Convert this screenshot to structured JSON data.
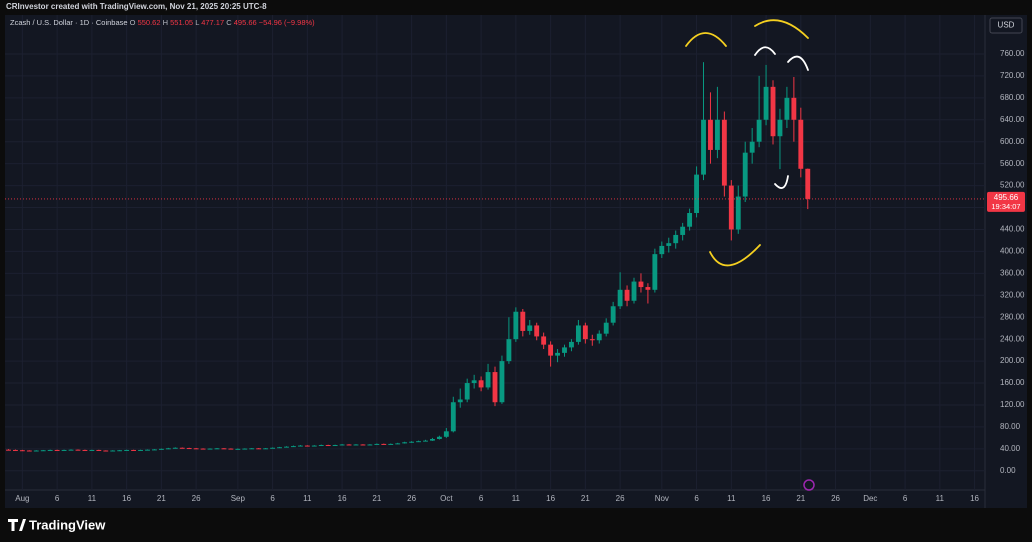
{
  "header": {
    "credit": "CRInvestor created with TradingView.com, Nov 21, 2025 20:25 UTC-8",
    "currency": "USD"
  },
  "chart_data": {
    "type": "candlestick",
    "title": "Zcash / U.S. Dollar · 1D · Coinbase",
    "ohlc_labels": [
      "O",
      "H",
      "L",
      "C"
    ],
    "change": "−54.96 (−9.98%)",
    "countdown": "19:34:07",
    "up_color": "#089981",
    "down_color": "#f23645",
    "grid": true,
    "ylim": [
      -35,
      831
    ],
    "yticks": [
      {
        "value": 0,
        "label": "0.00"
      },
      {
        "value": 40,
        "label": "40.00"
      },
      {
        "value": 80,
        "label": "80.00"
      },
      {
        "value": 120,
        "label": "120.00"
      },
      {
        "value": 160,
        "label": "160.00"
      },
      {
        "value": 200,
        "label": "200.00"
      },
      {
        "value": 240,
        "label": "240.00"
      },
      {
        "value": 280,
        "label": "280.00"
      },
      {
        "value": 320,
        "label": "320.00"
      },
      {
        "value": 360,
        "label": "360.00"
      },
      {
        "value": 400,
        "label": "400.00"
      },
      {
        "value": 440,
        "label": "440.00"
      },
      {
        "value": 480,
        "label": "480.00"
      },
      {
        "value": 520,
        "label": "520.00"
      },
      {
        "value": 560,
        "label": "560.00"
      },
      {
        "value": 600,
        "label": "600.00"
      },
      {
        "value": 640,
        "label": "640.00"
      },
      {
        "value": 680,
        "label": "680.00"
      },
      {
        "value": 720,
        "label": "720.00"
      },
      {
        "value": 760,
        "label": "760.00"
      }
    ],
    "xticks": [
      {
        "value": "Aug 1",
        "label": "Aug"
      },
      {
        "value": "Aug 6",
        "label": "6"
      },
      {
        "value": "Aug 11",
        "label": "11"
      },
      {
        "value": "Aug 16",
        "label": "16"
      },
      {
        "value": "Aug 21",
        "label": "21"
      },
      {
        "value": "Aug 26",
        "label": "26"
      },
      {
        "value": "Sep 1",
        "label": "Sep"
      },
      {
        "value": "Sep 6",
        "label": "6"
      },
      {
        "value": "Sep 11",
        "label": "11"
      },
      {
        "value": "Sep 16",
        "label": "16"
      },
      {
        "value": "Sep 21",
        "label": "21"
      },
      {
        "value": "Sep 26",
        "label": "26"
      },
      {
        "value": "Oct 1",
        "label": "Oct"
      },
      {
        "value": "Oct 6",
        "label": "6"
      },
      {
        "value": "Oct 11",
        "label": "11"
      },
      {
        "value": "Oct 16",
        "label": "16"
      },
      {
        "value": "Oct 21",
        "label": "21"
      },
      {
        "value": "Oct 26",
        "label": "26"
      },
      {
        "value": "Nov 1",
        "label": "Nov"
      },
      {
        "value": "Nov 6",
        "label": "6"
      },
      {
        "value": "Nov 11",
        "label": "11"
      },
      {
        "value": "Nov 16",
        "label": "16"
      },
      {
        "value": "Nov 21",
        "label": "21"
      },
      {
        "value": "Nov 26",
        "label": "26"
      },
      {
        "value": "Dec 1",
        "label": "Dec"
      },
      {
        "value": "Dec 6",
        "label": "6"
      },
      {
        "value": "Dec 11",
        "label": "11"
      },
      {
        "value": "Dec 16",
        "label": "16"
      }
    ],
    "categories": [
      "Jul 30",
      "Jul 31",
      "Aug 1",
      "Aug 2",
      "Aug 3",
      "Aug 4",
      "Aug 5",
      "Aug 6",
      "Aug 7",
      "Aug 8",
      "Aug 9",
      "Aug 10",
      "Aug 11",
      "Aug 12",
      "Aug 13",
      "Aug 14",
      "Aug 15",
      "Aug 16",
      "Aug 17",
      "Aug 18",
      "Aug 19",
      "Aug 20",
      "Aug 21",
      "Aug 22",
      "Aug 23",
      "Aug 24",
      "Aug 25",
      "Aug 26",
      "Aug 27",
      "Aug 28",
      "Aug 29",
      "Aug 30",
      "Aug 31",
      "Sep 1",
      "Sep 2",
      "Sep 3",
      "Sep 4",
      "Sep 5",
      "Sep 6",
      "Sep 7",
      "Sep 8",
      "Sep 9",
      "Sep 10",
      "Sep 11",
      "Sep 12",
      "Sep 13",
      "Sep 14",
      "Sep 15",
      "Sep 16",
      "Sep 17",
      "Sep 18",
      "Sep 19",
      "Sep 20",
      "Sep 21",
      "Sep 22",
      "Sep 23",
      "Sep 24",
      "Sep 25",
      "Sep 26",
      "Sep 27",
      "Sep 28",
      "Sep 29",
      "Sep 30",
      "Oct 1",
      "Oct 2",
      "Oct 3",
      "Oct 4",
      "Oct 5",
      "Oct 6",
      "Oct 7",
      "Oct 8",
      "Oct 9",
      "Oct 10",
      "Oct 11",
      "Oct 12",
      "Oct 13",
      "Oct 14",
      "Oct 15",
      "Oct 16",
      "Oct 17",
      "Oct 18",
      "Oct 19",
      "Oct 20",
      "Oct 21",
      "Oct 22",
      "Oct 23",
      "Oct 24",
      "Oct 25",
      "Oct 26",
      "Oct 27",
      "Oct 28",
      "Oct 29",
      "Oct 30",
      "Oct 31",
      "Nov 1",
      "Nov 2",
      "Nov 3",
      "Nov 4",
      "Nov 5",
      "Nov 6",
      "Nov 7",
      "Nov 8",
      "Nov 9",
      "Nov 10",
      "Nov 11",
      "Nov 12",
      "Nov 13",
      "Nov 14",
      "Nov 15",
      "Nov 16",
      "Nov 17",
      "Nov 18",
      "Nov 19",
      "Nov 20",
      "Nov 21",
      "Nov 22",
      "Nov 23",
      "Nov 24",
      "Nov 25",
      "Nov 26",
      "Nov 27",
      "Nov 28",
      "Nov 29",
      "Nov 30",
      "Dec 1",
      "Dec 2",
      "Dec 3",
      "Dec 4",
      "Dec 5",
      "Dec 6",
      "Dec 7",
      "Dec 8",
      "Dec 9",
      "Dec 10",
      "Dec 11",
      "Dec 12",
      "Dec 13",
      "Dec 14",
      "Dec 15",
      "Dec 16",
      "Dec 17"
    ],
    "open": [
      38.5,
      38,
      37.5,
      37,
      36.5,
      37,
      37.5,
      38,
      37.5,
      38,
      38.5,
      38,
      37.5,
      38,
      37,
      36.5,
      37,
      37.5,
      38,
      37.5,
      38,
      38.5,
      39,
      40,
      41,
      42,
      41.5,
      41,
      40.5,
      40,
      40.5,
      41,
      40.5,
      40,
      40,
      40.5,
      41,
      40.5,
      41,
      42,
      43,
      44,
      45,
      46,
      45.5,
      46,
      47,
      46.5,
      47,
      48,
      47.5,
      48,
      47,
      48,
      49,
      48.5,
      49,
      50,
      52,
      53,
      54,
      55,
      58,
      62,
      72,
      125,
      130,
      160,
      165,
      152,
      180,
      125,
      200,
      240,
      290,
      255,
      265,
      245,
      230,
      210,
      215,
      225,
      235,
      265,
      240,
      238,
      250,
      270,
      300,
      330,
      310,
      345,
      335,
      330,
      395,
      410,
      415,
      430,
      445,
      470,
      540,
      640,
      585,
      640,
      520,
      440,
      500,
      580,
      600,
      640,
      700,
      610,
      640,
      680,
      640,
      550.62,
      null,
      null,
      null,
      null,
      null,
      null,
      null,
      null,
      null,
      null,
      null,
      null,
      null,
      null,
      null,
      null,
      null,
      null,
      null,
      null,
      null,
      null,
      null,
      null,
      null
    ],
    "high": [
      39.5,
      38.8,
      38.2,
      37.5,
      37.6,
      38,
      38.6,
      38.5,
      38.6,
      39.2,
      39,
      38.6,
      38.5,
      38.4,
      37.4,
      37.6,
      38,
      38.5,
      38.4,
      38.5,
      39,
      39.6,
      40.6,
      41.8,
      42.8,
      42.6,
      42,
      41.6,
      41,
      41,
      41.6,
      41.4,
      41,
      40.8,
      41,
      41.6,
      41.5,
      41.6,
      42.6,
      43.6,
      44.8,
      46,
      47,
      46.6,
      46.8,
      47.8,
      47.5,
      47.6,
      48.8,
      48.6,
      48.6,
      48.5,
      48.6,
      49.8,
      49.6,
      49.8,
      51,
      53,
      54,
      55,
      56.5,
      60,
      64,
      78,
      135,
      150,
      168,
      175,
      172,
      195,
      190,
      210,
      280,
      298,
      295,
      275,
      270,
      252,
      236,
      222,
      230,
      240,
      275,
      270,
      248,
      256,
      278,
      308,
      362,
      338,
      352,
      360,
      342,
      405,
      418,
      425,
      438,
      452,
      478,
      555,
      745,
      690,
      700,
      655,
      530,
      520,
      600,
      625,
      720,
      740,
      712,
      660,
      700,
      718,
      662,
      551.05,
      null,
      null,
      null,
      null,
      null,
      null,
      null,
      null,
      null,
      null,
      null,
      null,
      null,
      null,
      null,
      null,
      null,
      null,
      null,
      null,
      null,
      null,
      null,
      null,
      null
    ],
    "low": [
      37.5,
      37,
      36.5,
      36,
      36,
      36.6,
      37,
      37,
      37.2,
      37.6,
      37.6,
      37,
      37,
      36.6,
      36,
      36,
      36.6,
      37,
      37,
      37,
      37.6,
      38,
      38.6,
      39.6,
      40.6,
      41,
      40.5,
      40,
      39.5,
      39.6,
      40,
      40,
      39.6,
      39.2,
      39.6,
      40,
      40,
      40,
      40.6,
      41.6,
      42.6,
      43.5,
      44.5,
      45,
      45,
      45.6,
      46,
      46,
      46.6,
      47,
      47,
      46.5,
      46.6,
      47.6,
      48,
      48,
      48.6,
      49.6,
      51,
      52.5,
      53.5,
      54.5,
      57,
      60,
      70,
      115,
      125,
      150,
      145,
      148,
      118,
      122,
      195,
      235,
      245,
      248,
      238,
      222,
      190,
      198,
      208,
      218,
      230,
      232,
      228,
      232,
      245,
      265,
      295,
      300,
      305,
      325,
      305,
      325,
      388,
      398,
      405,
      420,
      438,
      462,
      530,
      560,
      570,
      500,
      420,
      432,
      490,
      560,
      590,
      630,
      595,
      550,
      625,
      600,
      535,
      477.17,
      null,
      null,
      null,
      null,
      null,
      null,
      null,
      null,
      null,
      null,
      null,
      null,
      null,
      null,
      null,
      null,
      null,
      null,
      null,
      null,
      null,
      null,
      null,
      null,
      null
    ],
    "close": [
      38,
      37.5,
      37,
      36.5,
      37,
      37.5,
      38,
      37.5,
      38,
      38.5,
      38,
      37.5,
      38,
      37,
      36.5,
      37,
      37.5,
      38,
      37.5,
      38,
      38.5,
      39,
      40,
      41,
      42,
      41.5,
      41,
      40.5,
      40,
      40.5,
      41,
      40.5,
      40,
      40,
      40.5,
      41,
      40.5,
      41,
      42,
      43,
      44,
      45,
      46,
      45.5,
      46,
      47,
      46.5,
      47,
      48,
      47.5,
      48,
      47,
      48,
      49,
      48.5,
      49,
      50,
      52,
      53,
      54,
      55,
      58,
      62,
      72,
      125,
      130,
      160,
      165,
      152,
      180,
      125,
      200,
      240,
      290,
      255,
      265,
      245,
      230,
      210,
      215,
      225,
      235,
      265,
      240,
      238,
      250,
      270,
      300,
      330,
      310,
      345,
      335,
      330,
      395,
      410,
      415,
      430,
      445,
      470,
      540,
      640,
      585,
      640,
      520,
      440,
      500,
      580,
      600,
      640,
      700,
      610,
      640,
      680,
      640,
      550.62,
      495.66,
      null,
      null,
      null,
      null,
      null,
      null,
      null,
      null,
      null,
      null,
      null,
      null,
      null,
      null,
      null,
      null,
      null,
      null,
      null,
      null,
      null,
      null,
      null,
      null,
      null
    ]
  },
  "footer": {
    "brand": "TradingView"
  }
}
